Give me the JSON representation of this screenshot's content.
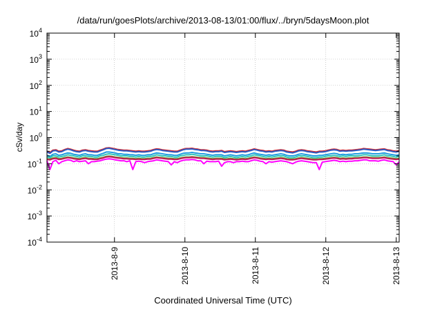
{
  "chart_data": {
    "type": "line",
    "title": "/data/run/goesPlots/archive/2013-08-13/01:00/flux/../bryn/5daysMoon.plot",
    "xlabel": "Coordinated Universal Time (UTC)",
    "ylabel": "cSv/day",
    "y_scale": "log",
    "ylim": [
      0.0001,
      10000
    ],
    "y_ticks": [
      {
        "value": 0.0001,
        "base": "10",
        "exp": "-4"
      },
      {
        "value": 0.001,
        "base": "10",
        "exp": "-3"
      },
      {
        "value": 0.01,
        "base": "10",
        "exp": "-2"
      },
      {
        "value": 0.1,
        "base": "10",
        "exp": "-1"
      },
      {
        "value": 1,
        "base": "10",
        "exp": "0"
      },
      {
        "value": 10,
        "base": "10",
        "exp": "1"
      },
      {
        "value": 100,
        "base": "10",
        "exp": "2"
      },
      {
        "value": 1000,
        "base": "10",
        "exp": "3"
      },
      {
        "value": 10000,
        "base": "10",
        "exp": "4"
      }
    ],
    "xlim": [
      "2013-08-08 01:00",
      "2013-08-13 01:00"
    ],
    "x_ticks": [
      "2013-8-9",
      "2013-8-10",
      "2013-8-11",
      "2013-8-12",
      "2013-8-13"
    ],
    "grid": true,
    "series": [
      {
        "color": "#d2232a",
        "baseline": 0.32,
        "values": [
          0.3,
          0.27,
          0.33,
          0.34,
          0.3,
          0.31,
          0.35,
          0.38,
          0.36,
          0.33,
          0.31,
          0.3,
          0.33,
          0.34,
          0.32,
          0.31,
          0.3,
          0.3,
          0.33,
          0.36,
          0.4,
          0.41,
          0.39,
          0.37,
          0.35,
          0.34,
          0.33,
          0.33,
          0.32,
          0.31,
          0.3,
          0.31,
          0.3,
          0.3,
          0.31,
          0.32,
          0.35,
          0.37,
          0.36,
          0.34,
          0.33,
          0.32,
          0.31,
          0.3,
          0.3,
          0.33,
          0.36,
          0.38,
          0.38,
          0.39,
          0.37,
          0.36,
          0.34,
          0.34,
          0.33,
          0.31,
          0.3,
          0.31,
          0.31,
          0.32,
          0.29,
          0.3,
          0.31,
          0.3,
          0.29,
          0.3,
          0.31,
          0.3,
          0.32,
          0.34,
          0.37,
          0.35,
          0.33,
          0.32,
          0.3,
          0.31,
          0.3,
          0.32,
          0.33,
          0.34,
          0.33,
          0.3,
          0.29,
          0.28,
          0.3,
          0.33,
          0.34,
          0.33,
          0.31,
          0.3,
          0.29,
          0.28,
          0.3,
          0.3,
          0.31,
          0.33,
          0.35,
          0.36,
          0.35,
          0.32,
          0.33,
          0.32,
          0.33,
          0.33,
          0.34,
          0.35,
          0.36,
          0.38,
          0.37,
          0.36,
          0.35,
          0.34,
          0.35,
          0.36,
          0.37,
          0.34,
          0.33,
          0.31,
          0.3,
          0.32
        ]
      },
      {
        "color": "#2b59c3",
        "baseline": 0.3,
        "values": [
          0.28,
          0.25,
          0.31,
          0.32,
          0.28,
          0.29,
          0.33,
          0.36,
          0.34,
          0.31,
          0.29,
          0.28,
          0.31,
          0.32,
          0.3,
          0.29,
          0.28,
          0.28,
          0.31,
          0.34,
          0.38,
          0.39,
          0.37,
          0.35,
          0.33,
          0.32,
          0.31,
          0.31,
          0.3,
          0.29,
          0.28,
          0.29,
          0.28,
          0.28,
          0.29,
          0.3,
          0.33,
          0.35,
          0.34,
          0.32,
          0.31,
          0.3,
          0.29,
          0.28,
          0.28,
          0.31,
          0.34,
          0.36,
          0.36,
          0.37,
          0.35,
          0.34,
          0.32,
          0.32,
          0.31,
          0.29,
          0.28,
          0.29,
          0.29,
          0.3,
          0.27,
          0.28,
          0.29,
          0.28,
          0.27,
          0.28,
          0.29,
          0.28,
          0.3,
          0.32,
          0.35,
          0.33,
          0.31,
          0.3,
          0.28,
          0.29,
          0.28,
          0.3,
          0.31,
          0.32,
          0.31,
          0.28,
          0.27,
          0.26,
          0.28,
          0.31,
          0.32,
          0.31,
          0.29,
          0.28,
          0.27,
          0.26,
          0.28,
          0.28,
          0.29,
          0.31,
          0.33,
          0.34,
          0.33,
          0.3,
          0.31,
          0.3,
          0.31,
          0.31,
          0.32,
          0.33,
          0.34,
          0.36,
          0.35,
          0.34,
          0.33,
          0.32,
          0.33,
          0.34,
          0.35,
          0.32,
          0.31,
          0.29,
          0.28,
          0.3
        ]
      },
      {
        "color": "#1e9be0",
        "baseline": 0.22,
        "values": [
          0.21,
          0.19,
          0.23,
          0.24,
          0.21,
          0.22,
          0.24,
          0.26,
          0.25,
          0.23,
          0.22,
          0.21,
          0.23,
          0.24,
          0.22,
          0.22,
          0.21,
          0.21,
          0.23,
          0.25,
          0.28,
          0.28,
          0.27,
          0.26,
          0.24,
          0.24,
          0.23,
          0.23,
          0.22,
          0.22,
          0.21,
          0.22,
          0.21,
          0.21,
          0.22,
          0.22,
          0.24,
          0.26,
          0.25,
          0.24,
          0.23,
          0.22,
          0.22,
          0.21,
          0.21,
          0.23,
          0.25,
          0.26,
          0.26,
          0.27,
          0.26,
          0.25,
          0.24,
          0.24,
          0.23,
          0.22,
          0.21,
          0.22,
          0.22,
          0.22,
          0.2,
          0.21,
          0.22,
          0.21,
          0.2,
          0.21,
          0.22,
          0.21,
          0.22,
          0.24,
          0.26,
          0.24,
          0.23,
          0.22,
          0.21,
          0.22,
          0.21,
          0.22,
          0.23,
          0.24,
          0.23,
          0.21,
          0.2,
          0.2,
          0.21,
          0.23,
          0.24,
          0.23,
          0.22,
          0.21,
          0.2,
          0.2,
          0.21,
          0.21,
          0.22,
          0.23,
          0.24,
          0.25,
          0.24,
          0.22,
          0.23,
          0.22,
          0.23,
          0.23,
          0.24,
          0.24,
          0.25,
          0.26,
          0.26,
          0.25,
          0.24,
          0.24,
          0.24,
          0.25,
          0.26,
          0.24,
          0.23,
          0.22,
          0.21,
          0.22
        ]
      },
      {
        "color": "#2ec4b6",
        "baseline": 0.19,
        "values": [
          0.18,
          0.17,
          0.2,
          0.2,
          0.18,
          0.19,
          0.2,
          0.22,
          0.21,
          0.2,
          0.19,
          0.18,
          0.2,
          0.2,
          0.19,
          0.19,
          0.18,
          0.18,
          0.2,
          0.21,
          0.23,
          0.24,
          0.23,
          0.22,
          0.21,
          0.2,
          0.2,
          0.2,
          0.19,
          0.19,
          0.18,
          0.19,
          0.18,
          0.18,
          0.19,
          0.19,
          0.2,
          0.22,
          0.21,
          0.2,
          0.2,
          0.19,
          0.19,
          0.18,
          0.18,
          0.2,
          0.21,
          0.22,
          0.22,
          0.23,
          0.22,
          0.21,
          0.2,
          0.2,
          0.2,
          0.19,
          0.18,
          0.19,
          0.19,
          0.19,
          0.17,
          0.18,
          0.19,
          0.18,
          0.17,
          0.18,
          0.19,
          0.18,
          0.19,
          0.2,
          0.22,
          0.21,
          0.2,
          0.19,
          0.18,
          0.19,
          0.18,
          0.19,
          0.2,
          0.2,
          0.2,
          0.18,
          0.17,
          0.17,
          0.18,
          0.2,
          0.2,
          0.2,
          0.19,
          0.18,
          0.17,
          0.17,
          0.18,
          0.18,
          0.19,
          0.2,
          0.2,
          0.21,
          0.2,
          0.19,
          0.2,
          0.19,
          0.2,
          0.2,
          0.2,
          0.2,
          0.21,
          0.22,
          0.22,
          0.21,
          0.2,
          0.2,
          0.2,
          0.21,
          0.22,
          0.2,
          0.2,
          0.19,
          0.18,
          0.19
        ]
      },
      {
        "color": "#6b8e23",
        "baseline": 0.16,
        "values": [
          0.155,
          0.15,
          0.165,
          0.17,
          0.155,
          0.16,
          0.17,
          0.18,
          0.175,
          0.165,
          0.16,
          0.155,
          0.165,
          0.17,
          0.16,
          0.16,
          0.155,
          0.155,
          0.165,
          0.175,
          0.19,
          0.195,
          0.19,
          0.18,
          0.175,
          0.17,
          0.165,
          0.165,
          0.16,
          0.16,
          0.155,
          0.16,
          0.155,
          0.155,
          0.16,
          0.16,
          0.17,
          0.18,
          0.175,
          0.17,
          0.165,
          0.16,
          0.16,
          0.155,
          0.155,
          0.165,
          0.175,
          0.18,
          0.18,
          0.185,
          0.18,
          0.175,
          0.17,
          0.17,
          0.165,
          0.16,
          0.155,
          0.16,
          0.16,
          0.16,
          0.15,
          0.155,
          0.16,
          0.155,
          0.15,
          0.155,
          0.16,
          0.155,
          0.16,
          0.17,
          0.18,
          0.175,
          0.165,
          0.16,
          0.155,
          0.16,
          0.155,
          0.16,
          0.165,
          0.17,
          0.165,
          0.155,
          0.15,
          0.15,
          0.155,
          0.165,
          0.17,
          0.165,
          0.16,
          0.155,
          0.15,
          0.15,
          0.155,
          0.155,
          0.16,
          0.165,
          0.17,
          0.175,
          0.17,
          0.16,
          0.165,
          0.16,
          0.165,
          0.165,
          0.17,
          0.17,
          0.175,
          0.18,
          0.18,
          0.175,
          0.17,
          0.17,
          0.17,
          0.175,
          0.18,
          0.17,
          0.165,
          0.16,
          0.155,
          0.16
        ]
      },
      {
        "color": "#c2185b",
        "baseline": 0.15,
        "values": [
          0.145,
          0.14,
          0.155,
          0.16,
          0.145,
          0.15,
          0.16,
          0.17,
          0.165,
          0.155,
          0.15,
          0.145,
          0.155,
          0.16,
          0.15,
          0.15,
          0.145,
          0.145,
          0.155,
          0.165,
          0.18,
          0.185,
          0.18,
          0.17,
          0.165,
          0.16,
          0.155,
          0.155,
          0.15,
          0.15,
          0.145,
          0.15,
          0.145,
          0.145,
          0.15,
          0.15,
          0.16,
          0.17,
          0.165,
          0.16,
          0.155,
          0.15,
          0.15,
          0.145,
          0.145,
          0.155,
          0.165,
          0.17,
          0.17,
          0.175,
          0.17,
          0.165,
          0.16,
          0.16,
          0.155,
          0.15,
          0.145,
          0.15,
          0.15,
          0.15,
          0.14,
          0.145,
          0.15,
          0.145,
          0.14,
          0.145,
          0.15,
          0.145,
          0.15,
          0.16,
          0.17,
          0.165,
          0.155,
          0.15,
          0.145,
          0.15,
          0.145,
          0.15,
          0.155,
          0.16,
          0.155,
          0.145,
          0.14,
          0.14,
          0.145,
          0.155,
          0.16,
          0.155,
          0.15,
          0.145,
          0.14,
          0.14,
          0.145,
          0.145,
          0.15,
          0.155,
          0.16,
          0.165,
          0.16,
          0.15,
          0.155,
          0.15,
          0.155,
          0.155,
          0.16,
          0.16,
          0.165,
          0.17,
          0.17,
          0.165,
          0.16,
          0.16,
          0.16,
          0.165,
          0.17,
          0.16,
          0.155,
          0.15,
          0.145,
          0.15
        ]
      },
      {
        "color": "#ff00ff",
        "baseline": 0.13,
        "values": [
          0.13,
          0.06,
          0.12,
          0.135,
          0.1,
          0.12,
          0.13,
          0.14,
          0.135,
          0.12,
          0.13,
          0.12,
          0.125,
          0.13,
          0.1,
          0.12,
          0.12,
          0.125,
          0.13,
          0.14,
          0.15,
          0.155,
          0.15,
          0.14,
          0.135,
          0.13,
          0.13,
          0.12,
          0.13,
          0.06,
          0.12,
          0.125,
          0.12,
          0.11,
          0.12,
          0.125,
          0.13,
          0.14,
          0.135,
          0.13,
          0.125,
          0.12,
          0.09,
          0.12,
          0.11,
          0.125,
          0.135,
          0.14,
          0.14,
          0.145,
          0.14,
          0.13,
          0.13,
          0.1,
          0.125,
          0.12,
          0.12,
          0.12,
          0.125,
          0.08,
          0.11,
          0.12,
          0.12,
          0.11,
          0.12,
          0.12,
          0.125,
          0.12,
          0.12,
          0.13,
          0.14,
          0.135,
          0.125,
          0.12,
          0.1,
          0.12,
          0.115,
          0.12,
          0.125,
          0.13,
          0.125,
          0.12,
          0.11,
          0.1,
          0.115,
          0.125,
          0.13,
          0.125,
          0.12,
          0.115,
          0.11,
          0.11,
          0.06,
          0.115,
          0.12,
          0.125,
          0.13,
          0.135,
          0.13,
          0.12,
          0.125,
          0.12,
          0.125,
          0.125,
          0.13,
          0.13,
          0.135,
          0.14,
          0.14,
          0.13,
          0.13,
          0.13,
          0.125,
          0.135,
          0.14,
          0.13,
          0.125,
          0.12,
          0.09,
          0.12
        ]
      }
    ]
  }
}
